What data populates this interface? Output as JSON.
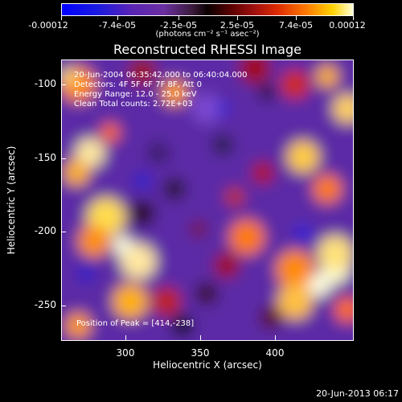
{
  "chart_data": {
    "type": "heatmap",
    "title": "Reconstructed RHESSI Image",
    "xlabel": "Heliocentric X (arcsec)",
    "ylabel": "Heliocentric Y (arcsec)",
    "xlim": [
      260,
      440
    ],
    "ylim": [
      -275,
      -85
    ],
    "xticks": [
      "300",
      "350",
      "400"
    ],
    "yticks": [
      "-100",
      "-150",
      "-200",
      "-250"
    ],
    "colorbar": {
      "labels": [
        "-0.00012",
        "-7.4e-05",
        "-2.5e-05",
        "2.5e-05",
        "7.4e-05",
        "0.00012"
      ],
      "units": "(photons cm⁻² s⁻¹ asec⁻²)",
      "min": -0.00012,
      "max": 0.00012,
      "colormap": [
        "#0000ff",
        "#6b2fa0",
        "#000000",
        "#a01010",
        "#ff7a00",
        "#ffffd8"
      ]
    },
    "info": [
      "20-Jun-2004 06:35:42.000 to 06:40:04.000",
      "Detectors: 4F 5F 6F 7F 8F, Att 0",
      "Energy Range: 12.0 - 25.0 keV",
      "Clean    Total counts: 2.72E+03"
    ],
    "peak_text": "Position of Peak = [414,-238]",
    "grid": false
  },
  "footer": {
    "timestamp": "20-Jun-2013 06:17"
  }
}
